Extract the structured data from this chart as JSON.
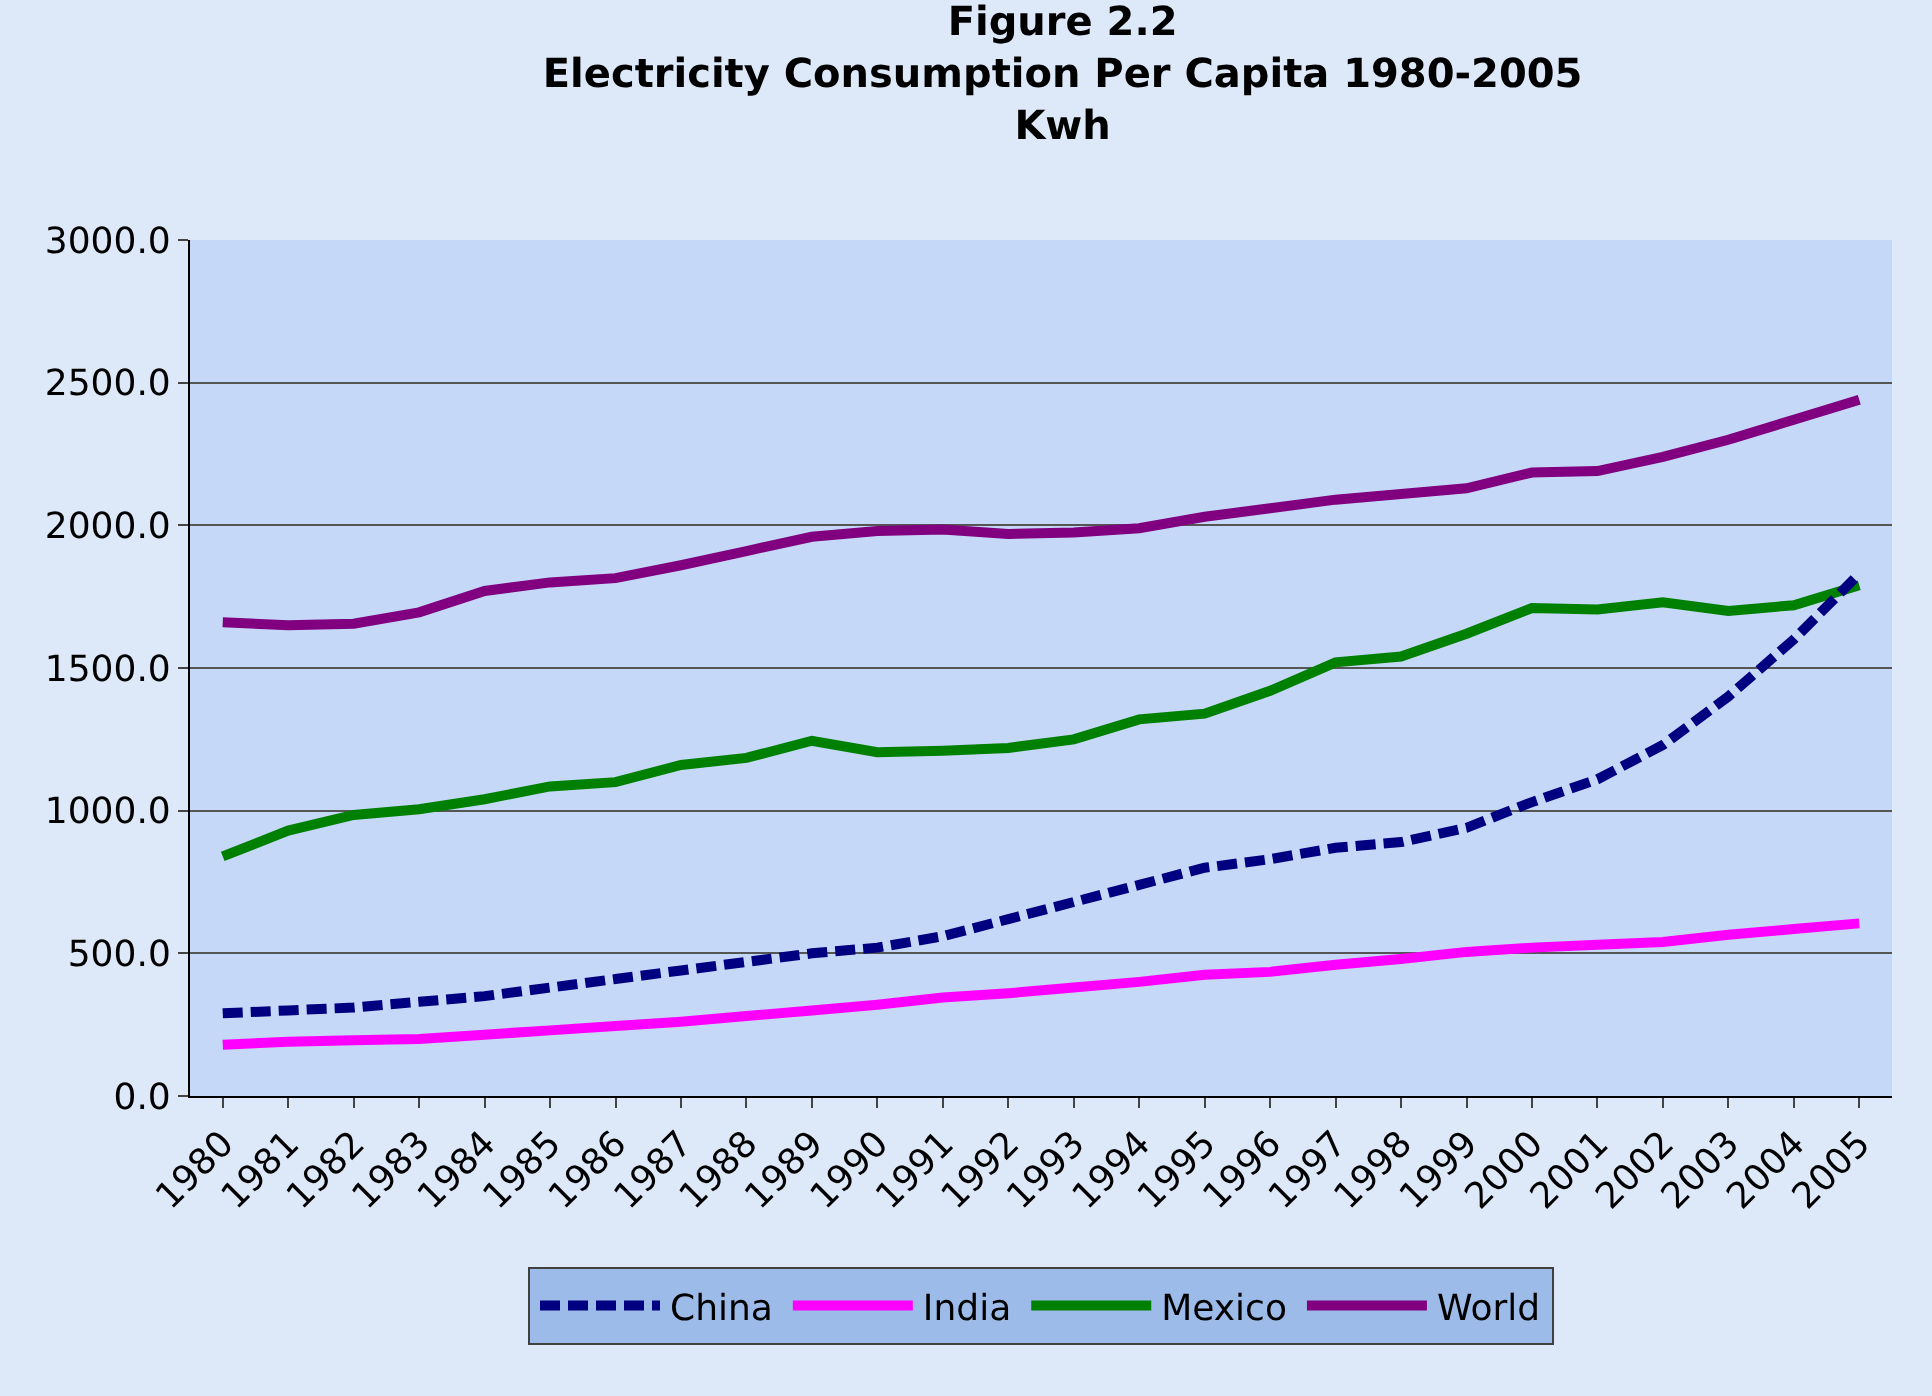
{
  "chart_data": {
    "type": "line",
    "title": "Figure 2.2\nElectricity Consumption Per Capita 1980-2005\nKwh",
    "categories": [
      "1980",
      "1981",
      "1982",
      "1983",
      "1984",
      "1985",
      "1986",
      "1987",
      "1988",
      "1989",
      "1990",
      "1991",
      "1992",
      "1993",
      "1994",
      "1995",
      "1996",
      "1997",
      "1998",
      "1999",
      "2000",
      "2001",
      "2002",
      "2003",
      "2004",
      "2005"
    ],
    "series": [
      {
        "name": "China",
        "color": "#000080",
        "line_style": "dashed",
        "values": [
          290,
          300,
          310,
          330,
          350,
          380,
          410,
          440,
          470,
          500,
          520,
          560,
          620,
          680,
          740,
          800,
          830,
          870,
          890,
          940,
          1030,
          1110,
          1230,
          1400,
          1600,
          1830
        ]
      },
      {
        "name": "India",
        "color": "#ff00ff",
        "line_style": "solid",
        "values": [
          180,
          190,
          195,
          200,
          215,
          230,
          245,
          260,
          280,
          300,
          320,
          345,
          360,
          380,
          400,
          425,
          435,
          460,
          480,
          505,
          520,
          530,
          540,
          565,
          585,
          605
        ]
      },
      {
        "name": "Mexico",
        "color": "#008000",
        "line_style": "solid",
        "values": [
          840,
          930,
          985,
          1005,
          1040,
          1085,
          1100,
          1160,
          1185,
          1245,
          1205,
          1210,
          1220,
          1250,
          1320,
          1340,
          1420,
          1520,
          1540,
          1620,
          1710,
          1705,
          1730,
          1700,
          1720,
          1790
        ]
      },
      {
        "name": "World",
        "color": "#800080",
        "line_style": "solid",
        "values": [
          1660,
          1650,
          1655,
          1695,
          1770,
          1800,
          1815,
          1860,
          1910,
          1960,
          1980,
          1985,
          1970,
          1975,
          1990,
          2030,
          2060,
          2090,
          2110,
          2130,
          2185,
          2190,
          2240,
          2300,
          2370,
          2440
        ]
      }
    ],
    "ylim": [
      0,
      3000
    ],
    "yticks": [
      {
        "value": 0,
        "label": "0.0"
      },
      {
        "value": 500,
        "label": "500.0"
      },
      {
        "value": 1000,
        "label": "1000.0"
      },
      {
        "value": 1500,
        "label": "1500.0"
      },
      {
        "value": 2000,
        "label": "2000.0"
      },
      {
        "value": 2500,
        "label": "2500.0"
      },
      {
        "value": 3000,
        "label": "3000.0"
      }
    ],
    "grid": "y",
    "legend": "bottom",
    "marker": "none"
  }
}
